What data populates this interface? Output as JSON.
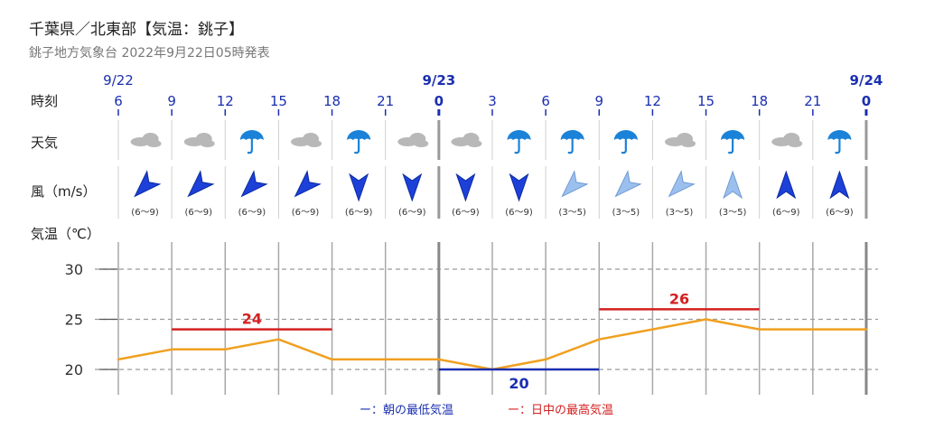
{
  "header": {
    "title": "千葉県／北東部【気温：銚子】",
    "subtitle": "銚子地方気象台 2022年9月22日05時発表"
  },
  "row_labels": {
    "time": "時刻",
    "weather": "天気",
    "wind": "風（m/s）",
    "temp": "気温（℃）"
  },
  "dates": [
    {
      "label": "9/22",
      "at_index": 0,
      "bold": false
    },
    {
      "label": "9/23",
      "at_index": 6,
      "bold": true
    },
    {
      "label": "9/24",
      "at_index": 14,
      "bold": true
    }
  ],
  "hours": [
    "6",
    "9",
    "12",
    "15",
    "18",
    "21",
    "0",
    "3",
    "6",
    "9",
    "12",
    "15",
    "18",
    "21",
    "0"
  ],
  "weather": [
    "cloud-icon",
    "cloud-icon",
    "umbrella-icon",
    "cloud-icon",
    "umbrella-icon",
    "cloud-icon",
    "cloud-icon",
    "umbrella-icon",
    "umbrella-icon",
    "umbrella-icon",
    "cloud-icon",
    "umbrella-icon",
    "cloud-icon",
    "umbrella-icon"
  ],
  "wind": [
    {
      "dir": "NE",
      "speed": "(6～9)",
      "strong": true
    },
    {
      "dir": "NE",
      "speed": "(6～9)",
      "strong": true
    },
    {
      "dir": "NE",
      "speed": "(6～9)",
      "strong": true
    },
    {
      "dir": "NE",
      "speed": "(6～9)",
      "strong": true
    },
    {
      "dir": "N",
      "speed": "(6～9)",
      "strong": true
    },
    {
      "dir": "N",
      "speed": "(6～9)",
      "strong": true
    },
    {
      "dir": "N",
      "speed": "(6～9)",
      "strong": true
    },
    {
      "dir": "N",
      "speed": "(6～9)",
      "strong": true
    },
    {
      "dir": "NE",
      "speed": "(3～5)",
      "strong": false
    },
    {
      "dir": "NE",
      "speed": "(3～5)",
      "strong": false
    },
    {
      "dir": "NE",
      "speed": "(3～5)",
      "strong": false
    },
    {
      "dir": "S",
      "speed": "(3～5)",
      "strong": false
    },
    {
      "dir": "S",
      "speed": "(6～9)",
      "strong": true
    },
    {
      "dir": "S",
      "speed": "(6～9)",
      "strong": true
    }
  ],
  "colors": {
    "temp_line": "#f0a020",
    "min_temp": "#1a2fb0",
    "max_temp": "#d42020",
    "date_blue": "#1a2fb0",
    "wind_strong": "#1c40d8",
    "wind_weak": "#9cc0ee",
    "umbrella": "#1a82d8",
    "cloud": "#b8b8b8"
  },
  "chart_data": {
    "type": "line",
    "x": [
      "9/22 6",
      "9/22 9",
      "9/22 12",
      "9/22 15",
      "9/22 18",
      "9/22 21",
      "9/23 0",
      "9/23 3",
      "9/23 6",
      "9/23 9",
      "9/23 12",
      "9/23 15",
      "9/23 18",
      "9/23 21",
      "9/24 0"
    ],
    "series": [
      {
        "values": [
          21,
          22,
          22,
          23,
          21,
          21,
          21,
          20,
          21,
          23,
          24,
          25,
          24,
          24,
          24
        ]
      }
    ],
    "y_ticks": [
      20,
      25,
      30
    ],
    "ylim": [
      18,
      32
    ],
    "max_temp_bands": [
      {
        "label": "24",
        "value": 24,
        "from_index": 1,
        "to_index": 4
      },
      {
        "label": "26",
        "value": 26,
        "from_index": 9,
        "to_index": 12
      }
    ],
    "min_temp_bands": [
      {
        "label": "20",
        "value": 20,
        "from_index": 6,
        "to_index": 9
      }
    ]
  },
  "legend": {
    "min": "ー：朝の最低気温",
    "max": "ー：日中の最高気温"
  }
}
